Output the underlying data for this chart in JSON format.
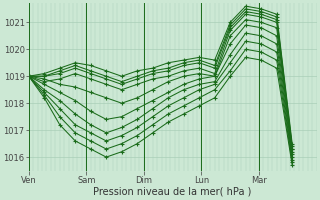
{
  "title": "",
  "xlabel": "Pression niveau de la mer( hPa )",
  "ylabel": "",
  "bg_color": "#cce8d4",
  "grid_color": "#aacfb8",
  "line_color": "#1a6b1a",
  "xlim": [
    0,
    130
  ],
  "ylim": [
    1015.5,
    1021.7
  ],
  "yticks": [
    1016,
    1017,
    1018,
    1019,
    1020,
    1021
  ],
  "xtick_positions": [
    0,
    26,
    52,
    78,
    104
  ],
  "xtick_labels": [
    "Ven",
    "Sam",
    "Dim",
    "Lun",
    "Mar"
  ],
  "vline_positions": [
    0,
    26,
    52,
    78,
    104
  ],
  "members": [
    [
      1019.0,
      1018.9,
      1018.7,
      1018.6,
      1018.4,
      1018.2,
      1018.0,
      1018.2,
      1018.5,
      1018.8,
      1019.0,
      1019.1,
      1019.0,
      1020.5,
      1021.1,
      1021.0,
      1020.8,
      1016.2
    ],
    [
      1019.0,
      1018.7,
      1018.4,
      1018.1,
      1017.7,
      1017.4,
      1017.5,
      1017.8,
      1018.1,
      1018.4,
      1018.7,
      1018.9,
      1019.0,
      1020.2,
      1020.9,
      1020.8,
      1020.5,
      1016.1
    ],
    [
      1019.0,
      1018.5,
      1018.1,
      1017.6,
      1017.2,
      1016.9,
      1017.1,
      1017.4,
      1017.8,
      1018.2,
      1018.5,
      1018.7,
      1018.8,
      1019.8,
      1020.6,
      1020.5,
      1020.2,
      1016.0
    ],
    [
      1019.0,
      1018.4,
      1017.8,
      1017.2,
      1016.9,
      1016.6,
      1016.8,
      1017.1,
      1017.5,
      1017.9,
      1018.2,
      1018.5,
      1018.7,
      1019.5,
      1020.3,
      1020.2,
      1019.9,
      1015.9
    ],
    [
      1019.0,
      1018.3,
      1017.5,
      1016.9,
      1016.6,
      1016.3,
      1016.5,
      1016.8,
      1017.2,
      1017.6,
      1017.9,
      1018.2,
      1018.5,
      1019.2,
      1020.0,
      1019.9,
      1019.6,
      1015.8
    ],
    [
      1019.0,
      1018.8,
      1018.9,
      1019.1,
      1018.9,
      1018.7,
      1018.5,
      1018.7,
      1018.9,
      1019.0,
      1019.2,
      1019.3,
      1019.1,
      1020.7,
      1021.3,
      1021.2,
      1021.0,
      1016.3
    ],
    [
      1019.0,
      1019.0,
      1019.2,
      1019.4,
      1019.2,
      1019.0,
      1018.8,
      1019.0,
      1019.2,
      1019.3,
      1019.5,
      1019.6,
      1019.4,
      1020.9,
      1021.5,
      1021.4,
      1021.2,
      1016.4
    ],
    [
      1019.0,
      1019.1,
      1019.3,
      1019.5,
      1019.4,
      1019.2,
      1019.0,
      1019.2,
      1019.3,
      1019.5,
      1019.6,
      1019.7,
      1019.6,
      1021.0,
      1021.6,
      1021.5,
      1021.3,
      1016.5
    ],
    [
      1019.0,
      1019.0,
      1019.1,
      1019.3,
      1019.1,
      1018.9,
      1018.7,
      1018.9,
      1019.1,
      1019.2,
      1019.4,
      1019.5,
      1019.3,
      1020.8,
      1021.4,
      1021.3,
      1021.1,
      1016.3
    ],
    [
      1019.0,
      1018.2,
      1017.2,
      1016.6,
      1016.3,
      1016.0,
      1016.2,
      1016.5,
      1016.9,
      1017.3,
      1017.6,
      1017.9,
      1018.2,
      1019.0,
      1019.7,
      1019.6,
      1019.3,
      1015.7
    ]
  ],
  "x_steps": [
    0,
    7,
    14,
    21,
    28,
    35,
    42,
    49,
    56,
    63,
    70,
    77,
    84,
    91,
    98,
    105,
    112,
    119
  ]
}
